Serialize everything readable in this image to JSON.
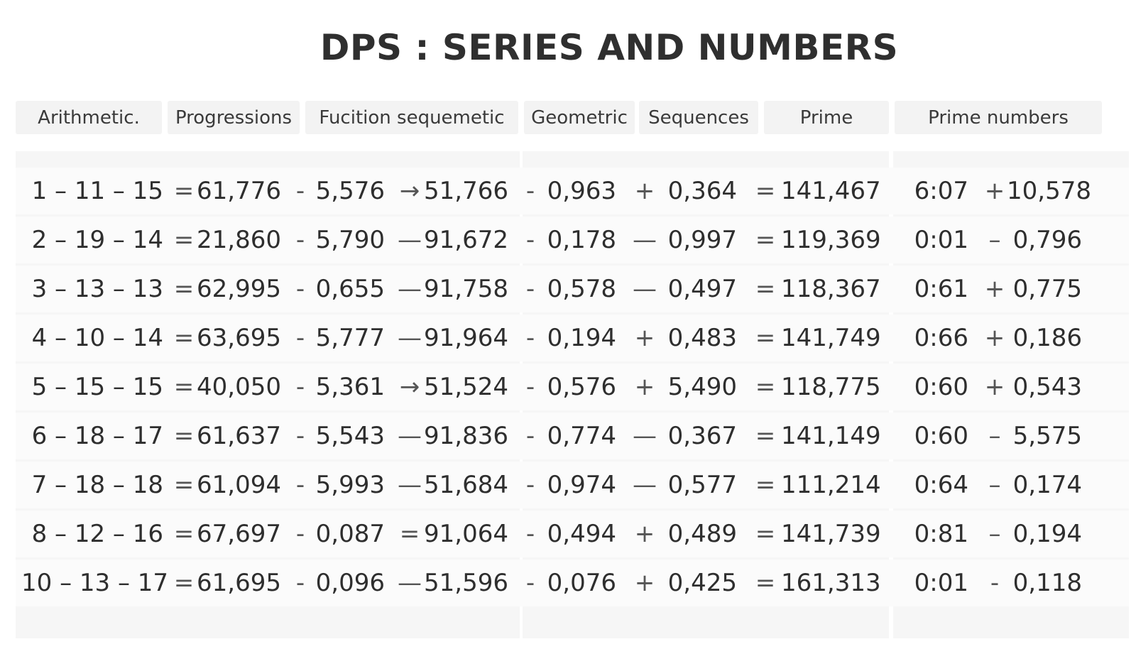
{
  "title": "DPS : SERIES AND NUMBERS",
  "headers": [
    "Arithmetic.",
    "Progressions",
    "Fucition sequemetic",
    "Geometric",
    "Sequences",
    "Prime",
    "Prime numbers"
  ],
  "rows": [
    [
      "1 – 11 – 15",
      "=",
      "61,776",
      "-",
      "5,576",
      "→",
      "51,766",
      "-",
      "0,963",
      "+",
      "0,364",
      "=",
      "141,467",
      "6:07",
      "+",
      "10,578"
    ],
    [
      "2 – 19 – 14",
      "=",
      "21,860",
      "-",
      "5,790",
      "—",
      "91,672",
      "-",
      "0,178",
      "—",
      "0,997",
      "=",
      "119,369",
      "0:01",
      "–",
      "0,796"
    ],
    [
      "3 – 13 – 13",
      "=",
      "62,995",
      "-",
      "0,655",
      "—",
      "91,758",
      "-",
      "0,578",
      "—",
      "0,497",
      "=",
      "118,367",
      "0:61",
      "+",
      "0,775"
    ],
    [
      "4 – 10 – 14",
      "=",
      "63,695",
      "-",
      "5,777",
      "—",
      "91,964",
      "-",
      "0,194",
      "+",
      "0,483",
      "=",
      "141,749",
      "0:66",
      "+",
      "0,186"
    ],
    [
      "5 – 15 – 15",
      "=",
      "40,050",
      "-",
      "5,361",
      "→",
      "51,524",
      "-",
      "0,576",
      "+",
      "5,490",
      "=",
      "118,775",
      "0:60",
      "+",
      "0,543"
    ],
    [
      "6 – 18 – 17",
      "=",
      "61,637",
      "-",
      "5,543",
      "—",
      "91,836",
      "-",
      "0,774",
      "—",
      "0,367",
      "=",
      "141,149",
      "0:60",
      "–",
      "5,575"
    ],
    [
      "7 – 18 – 18",
      "=",
      "61,094",
      "-",
      "5,993",
      "—",
      "51,684",
      "-",
      "0,974",
      "—",
      "0,577",
      "=",
      "111,214",
      "0:64",
      "–",
      "0,174"
    ],
    [
      "8 – 12 – 16",
      "=",
      "67,697",
      "-",
      "0,087",
      "=",
      "91,064",
      "-",
      "0,494",
      "+",
      "0,489",
      "=",
      "141,739",
      "0:81",
      "–",
      "0,194"
    ],
    [
      "10 – 13 – 17",
      "=",
      "61,695",
      "-",
      "0,096",
      "—",
      "51,596",
      "-",
      "0,076",
      "+",
      "0,425",
      "=",
      "161,313",
      "0:01",
      "-",
      "0,118"
    ]
  ]
}
